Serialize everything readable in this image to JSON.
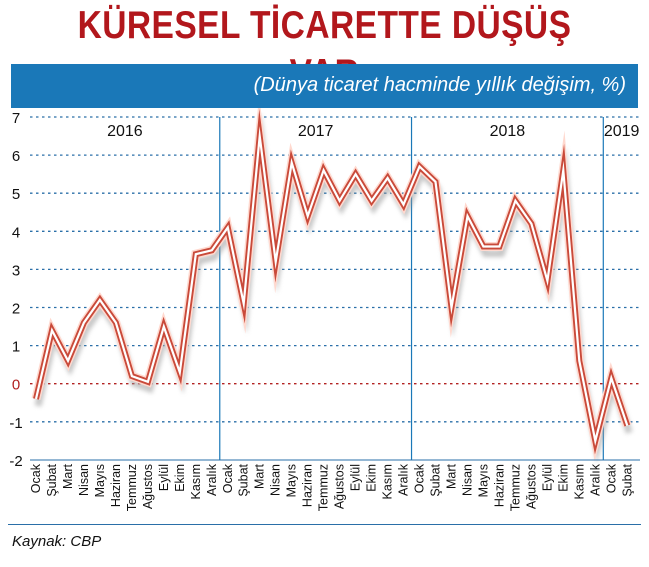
{
  "title": "KÜRESEL TİCARETTE DÜŞÜŞ VAR",
  "subtitle": "(Dünya ticaret hacminde yıllık değişim, %)",
  "source": "Kaynak: CBP",
  "colors": {
    "title": "#b2171c",
    "banner": "#1a78b8",
    "line": "#c94a3a",
    "line_glow": "#ffd9cf",
    "grid": "#2a6fa8",
    "zero_line": "#b22222",
    "divider": "#1a78b8"
  },
  "chart_data": {
    "type": "line",
    "title": "KÜRESEL TİCARETTE DÜŞÜŞ VAR",
    "subtitle": "(Dünya ticaret hacminde yıllık değişim, %)",
    "xlabel": "",
    "ylabel": "",
    "ylim": [
      -2,
      7
    ],
    "yticks": [
      "7",
      "6",
      "5",
      "4",
      "3",
      "2",
      "1",
      "0",
      "-1",
      "-2"
    ],
    "grid": true,
    "years": [
      "2016",
      "2017",
      "2018",
      "2019"
    ],
    "categories": [
      "Ocak",
      "Şubat",
      "Mart",
      "Nisan",
      "Mayıs",
      "Haziran",
      "Temmuz",
      "Ağustos",
      "Eylül",
      "Ekim",
      "Kasım",
      "Aralık",
      "Ocak",
      "Şubat",
      "Mart",
      "Nisan",
      "Mayıs",
      "Haziran",
      "Temmuz",
      "Ağustos",
      "Eylül",
      "Ekim",
      "Kasım",
      "Aralık",
      "Ocak",
      "Şubat",
      "Mart",
      "Nisan",
      "Mayıs",
      "Haziran",
      "Temmuz",
      "Ağustos",
      "Eylül",
      "Ekim",
      "Kasım",
      "Aralık",
      "Ocak",
      "Şubat"
    ],
    "values": [
      -0.4,
      1.4,
      0.6,
      1.6,
      2.2,
      1.6,
      0.2,
      0.05,
      1.5,
      0.3,
      3.4,
      3.5,
      4.1,
      2.1,
      6.5,
      3.2,
      5.8,
      4.4,
      5.6,
      4.8,
      5.5,
      4.8,
      5.4,
      4.7,
      5.7,
      5.3,
      2.0,
      4.4,
      3.6,
      3.6,
      4.8,
      4.2,
      2.7,
      5.6,
      0.6,
      -1.5,
      0.15,
      -1.1
    ]
  }
}
